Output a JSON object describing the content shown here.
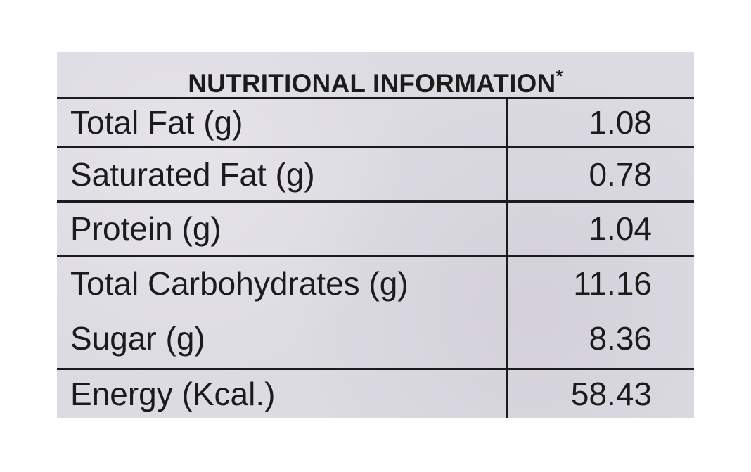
{
  "label": {
    "title": "NUTRITIONAL INFORMATION",
    "title_marker": "*",
    "rows": [
      {
        "name": "Total Fat (g)",
        "value": "1.08"
      },
      {
        "name": "Saturated Fat (g)",
        "value": "0.78"
      },
      {
        "name": "Protein (g)",
        "value": "1.04"
      },
      {
        "name": "Total Carbohydrates (g)",
        "value": "11.16"
      },
      {
        "name": "Sugar (g)",
        "value": "8.36"
      },
      {
        "name": "Energy (Kcal.)",
        "value": "58.43"
      }
    ]
  },
  "colors": {
    "panel": "#dddbe2",
    "ink": "#1b1b1b",
    "background": "#ffffff"
  }
}
